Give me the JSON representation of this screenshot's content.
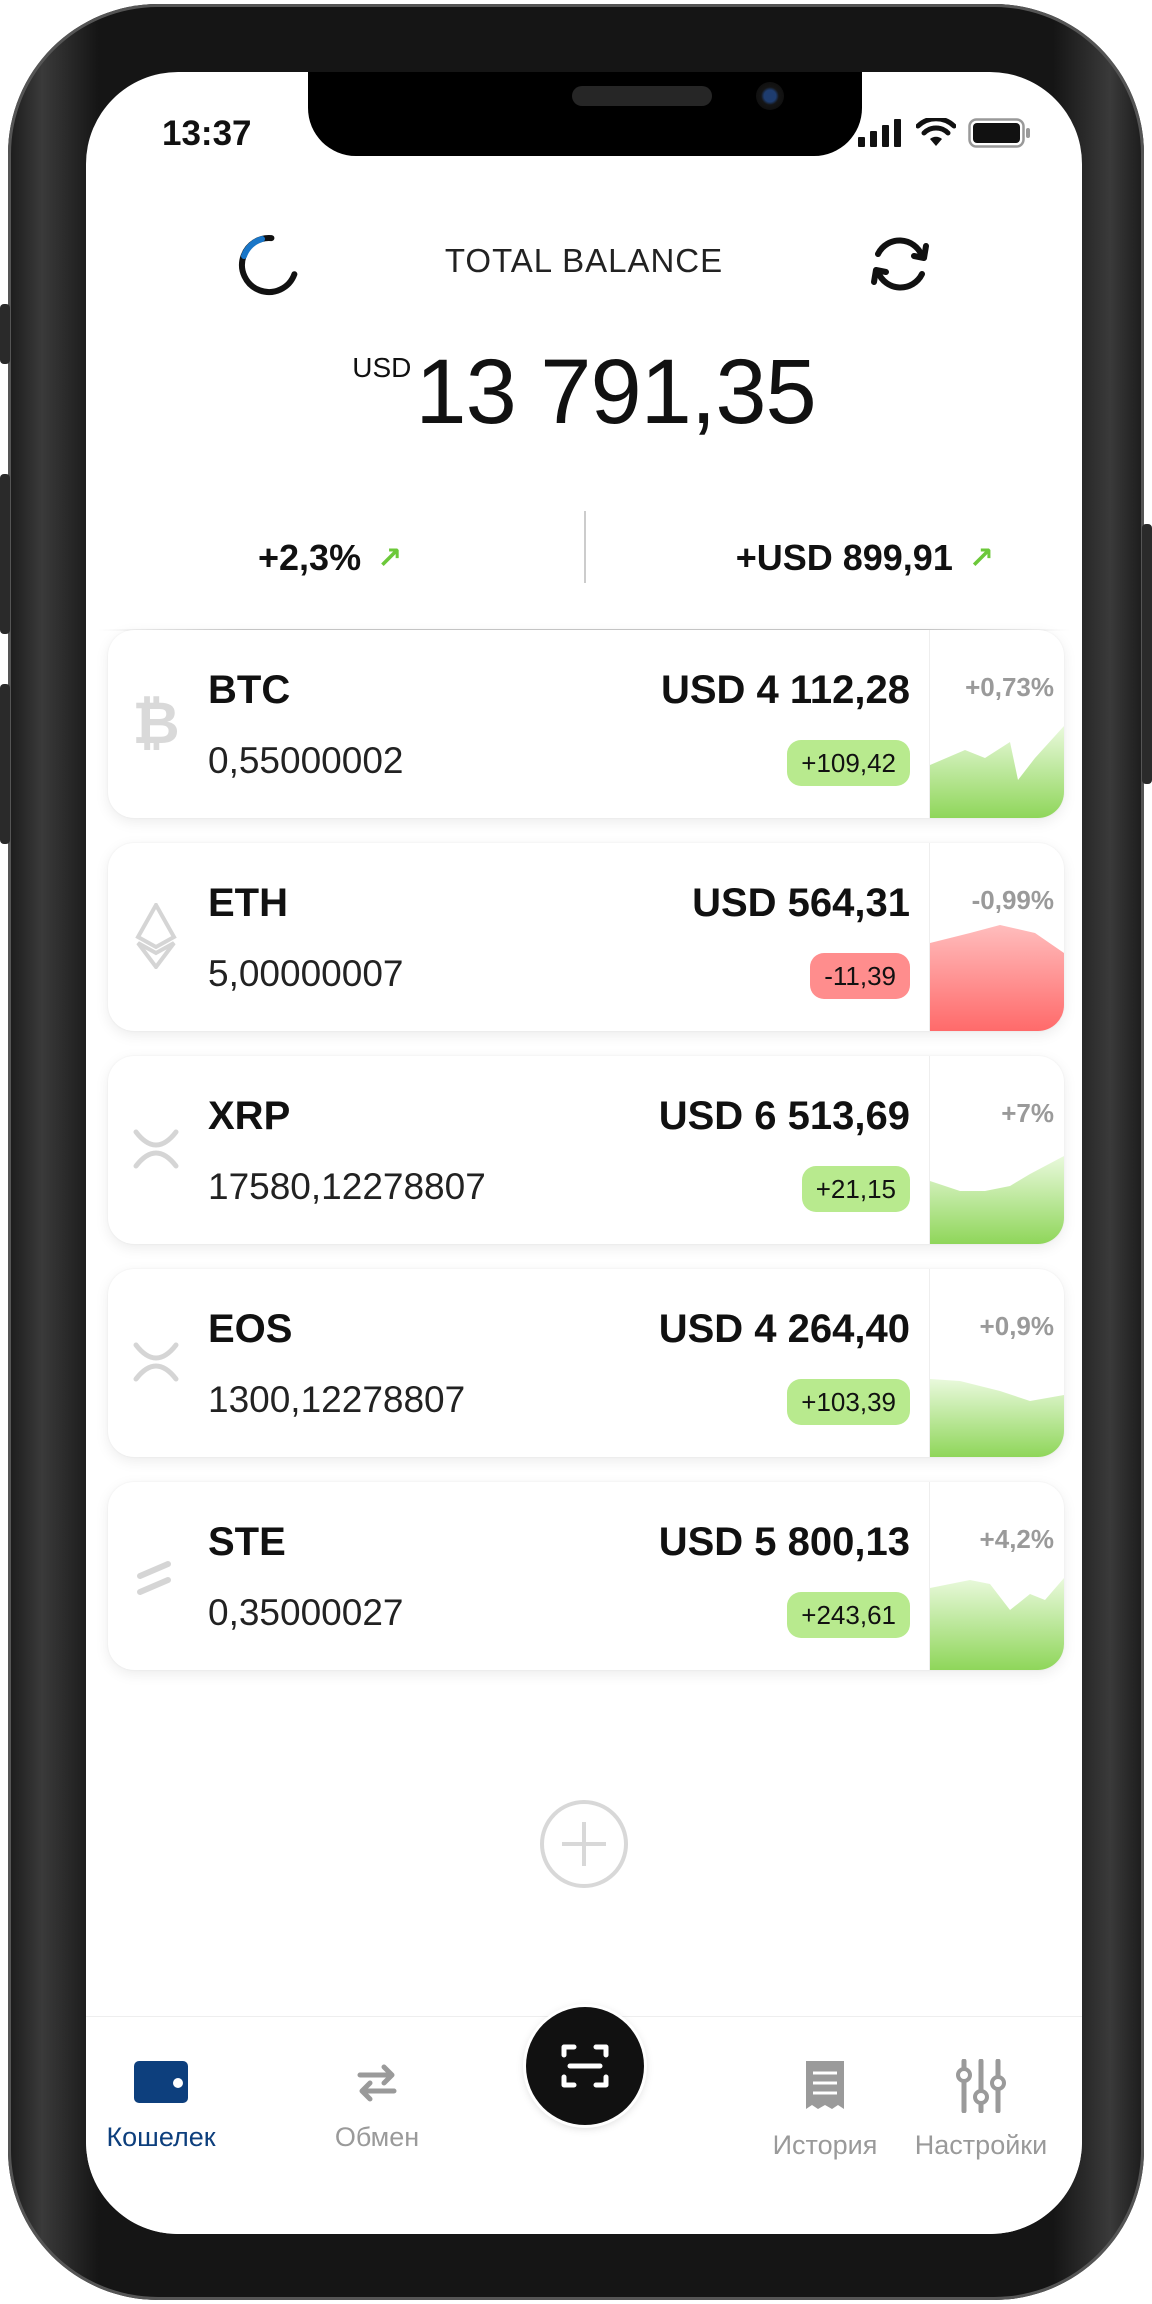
{
  "status_bar": {
    "time": "13:37"
  },
  "header": {
    "title": "TOTAL BALANCE",
    "balance_currency": "USD",
    "balance_amount": "13 791,35",
    "change_percent": "+2,3%",
    "change_amount": "+USD 899,91"
  },
  "coins": [
    {
      "symbol": "BTC",
      "amount": "0,55000002",
      "value": "USD 4 112,28",
      "delta": "+109,42",
      "percent": "+0,73%",
      "trend": "up",
      "icon": "bitcoin-icon"
    },
    {
      "symbol": "ETH",
      "amount": "5,00000007",
      "value": "USD 564,31",
      "delta": "-11,39",
      "percent": "-0,99%",
      "trend": "down",
      "icon": "ethereum-icon"
    },
    {
      "symbol": "XRP",
      "amount": "17580,12278807",
      "value": "USD 6 513,69",
      "delta": "+21,15",
      "percent": "+7%",
      "trend": "up",
      "icon": "ripple-icon"
    },
    {
      "symbol": "EOS",
      "amount": "1300,12278807",
      "value": "USD 4 264,40",
      "delta": "+103,39",
      "percent": "+0,9%",
      "trend": "up",
      "icon": "eos-icon"
    },
    {
      "symbol": "STE",
      "amount": "0,35000027",
      "value": "USD 5 800,13",
      "delta": "+243,61",
      "percent": "+4,2%",
      "trend": "up",
      "icon": "ste-icon"
    }
  ],
  "tabs": [
    {
      "label": "Кошелек",
      "icon": "wallet-icon",
      "active": true
    },
    {
      "label": "Обмен",
      "icon": "exchange-icon"
    },
    {
      "label": "История",
      "icon": "receipt-icon"
    },
    {
      "label": "Настройки",
      "icon": "sliders-icon"
    }
  ],
  "colors": {
    "accent": "#0d3f7d",
    "positive": "#b8ea8e",
    "negative": "#ff8d8d",
    "spark_up": "#8fd65a",
    "spark_down": "#ff6a6a"
  }
}
